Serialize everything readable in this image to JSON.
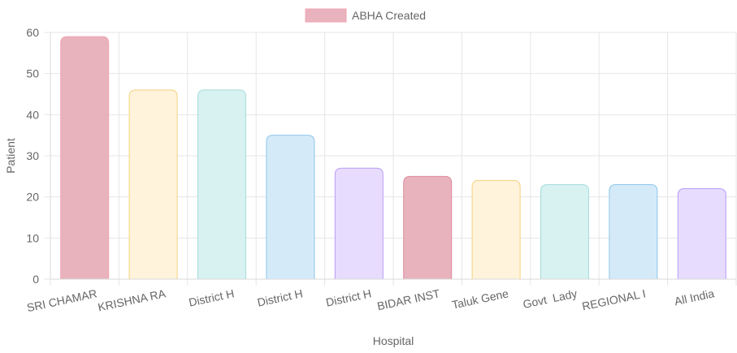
{
  "chart_data": {
    "type": "bar",
    "categories": [
      "SRI CHAMAR",
      "KRISHNA RA",
      "District H",
      "District H",
      "District H",
      "BIDAR INST",
      "Taluk Gene",
      "Govt  Lady",
      "REGIONAL I",
      "All India"
    ],
    "series": [
      {
        "name": "ABHA Created",
        "values": [
          59,
          46,
          46,
          35,
          27,
          25,
          24,
          23,
          23,
          22
        ]
      }
    ],
    "xlabel": "Hospital",
    "ylabel": "Patient",
    "ylim": [
      0,
      60
    ],
    "yticks": [
      0,
      10,
      20,
      30,
      40,
      50,
      60
    ],
    "grid": true,
    "legend_position": "top-center",
    "bar_fills": [
      "#e8b3bd",
      "#fff3db",
      "#d8f1f1",
      "#d5eaf8",
      "#e7dcfd",
      "#e8b3bd",
      "#fff3db",
      "#d8f1f1",
      "#d5eaf8",
      "#e7dcfd"
    ],
    "bar_strokes": [
      "#f2a3b3",
      "#f6d27d",
      "#a5dcdc",
      "#8dc6eb",
      "#b89cf5",
      "#e08a9b",
      "#f6d27d",
      "#a5dcdc",
      "#8dc6eb",
      "#b89cf5"
    ],
    "legend_swatch_color": "#e8b3bd"
  }
}
